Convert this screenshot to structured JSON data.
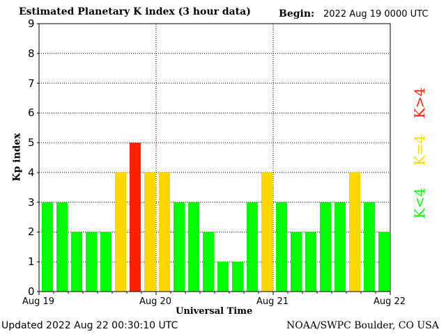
{
  "header": {
    "title": "Estimated Planetary K index (3 hour data)",
    "begin_label": "Begin:",
    "begin_value": "2022 Aug 19 0000 UTC"
  },
  "footer": {
    "updated": "Updated 2022 Aug 22 00:30:10 UTC",
    "source": "NOAA/SWPC Boulder, CO USA"
  },
  "legend": {
    "low": "K<4",
    "mid": "K=4",
    "high": "K>4"
  },
  "colors": {
    "low": "#00ff00",
    "mid": "#ffd700",
    "high": "#ff2000"
  },
  "chart_data": {
    "type": "bar",
    "title": "Estimated Planetary K index (3 hour data)",
    "xlabel": "Universal Time",
    "ylabel": "Kp index",
    "ylim": [
      0,
      9
    ],
    "yticks": [
      "0",
      "1",
      "2",
      "3",
      "4",
      "5",
      "6",
      "7",
      "8",
      "9"
    ],
    "xtick_labels": [
      "Aug 19",
      "Aug 20",
      "Aug 21",
      "Aug 22"
    ],
    "grid": true,
    "interval_hours": 3,
    "values": [
      3,
      3,
      2,
      2,
      2,
      4,
      5,
      4,
      4,
      3,
      3,
      2,
      1,
      1,
      3,
      4,
      3,
      2,
      2,
      3,
      3,
      4,
      3,
      2
    ]
  }
}
